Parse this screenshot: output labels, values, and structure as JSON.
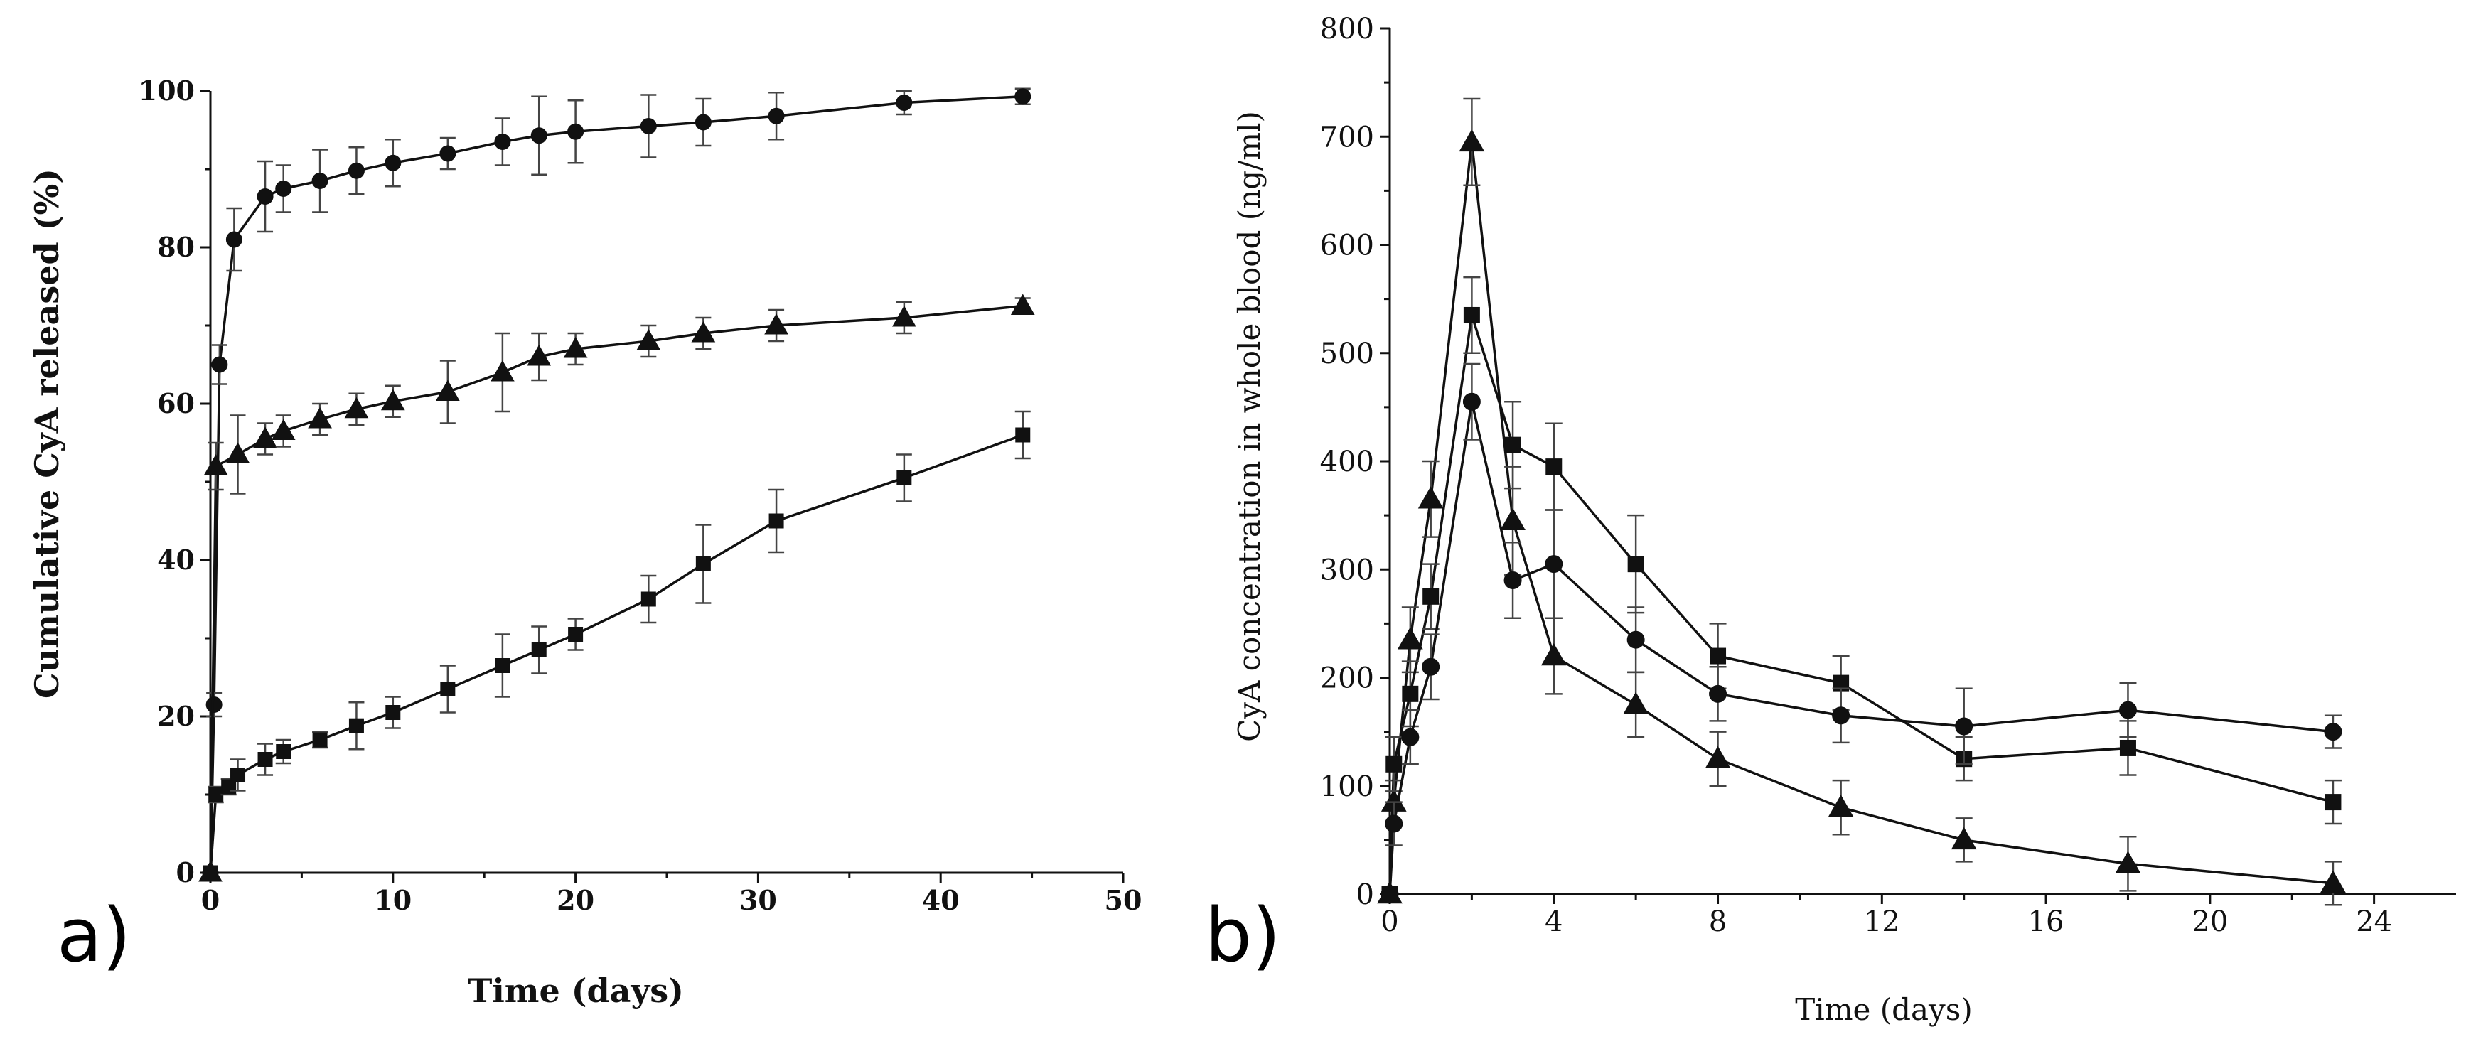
{
  "panels": [
    {
      "label": "a)",
      "xlabel": "Time (days)",
      "ylabel": "Cumulative CyA released (%)",
      "xlim": [
        0,
        50
      ],
      "ylim": [
        0,
        100
      ],
      "xticks": [
        "0",
        "10",
        "20",
        "30",
        "40",
        "50"
      ],
      "yticks": [
        "0",
        "20",
        "40",
        "60",
        "80",
        "100"
      ]
    },
    {
      "label": "b)",
      "xlabel": "Time (days)",
      "ylabel": "CyA concentration in whole blood (ng/ml)",
      "xlim": [
        0,
        26
      ],
      "ylim": [
        0,
        800
      ],
      "xticks": [
        "0",
        "4",
        "8",
        "12",
        "16",
        "20",
        "24"
      ],
      "yticks": [
        "0",
        "100",
        "200",
        "300",
        "400",
        "500",
        "600",
        "700",
        "800"
      ]
    }
  ],
  "chart_data": [
    {
      "type": "line",
      "title": "",
      "xlabel": "Time (days)",
      "ylabel": "Cumulative CyA released (%)",
      "xlim": [
        0,
        50
      ],
      "ylim": [
        0,
        100
      ],
      "grid": false,
      "series": [
        {
          "name": "circle",
          "marker": "circle",
          "x": [
            0,
            0.2,
            0.5,
            1.3,
            3,
            4,
            6,
            8,
            10,
            13,
            16,
            18,
            20,
            24,
            27,
            31,
            38,
            44.5
          ],
          "y": [
            0,
            21.5,
            65,
            81,
            86.5,
            87.5,
            88.5,
            89.8,
            90.8,
            92,
            93.5,
            94.3,
            94.8,
            95.5,
            96,
            96.8,
            98.5,
            99.3
          ],
          "err": [
            0,
            1.5,
            2.5,
            4,
            4.5,
            3,
            4,
            3,
            3,
            2,
            3,
            5,
            4,
            4,
            3,
            3,
            1.5,
            1
          ]
        },
        {
          "name": "triangle",
          "marker": "triangle",
          "x": [
            0,
            0.3,
            1.5,
            3,
            4,
            6,
            8,
            10,
            13,
            16,
            18,
            20,
            24,
            27,
            31,
            38,
            44.5
          ],
          "y": [
            0,
            52,
            53.5,
            55.5,
            56.5,
            58,
            59.3,
            60.3,
            61.5,
            64,
            66,
            67,
            68,
            69,
            70,
            71,
            72.5
          ],
          "err": [
            0,
            3,
            5,
            2,
            2,
            2,
            2,
            2,
            4,
            5,
            3,
            2,
            2,
            2,
            2,
            2,
            1
          ]
        },
        {
          "name": "square",
          "marker": "square",
          "x": [
            0,
            0.3,
            1,
            1.5,
            3,
            4,
            6,
            8,
            10,
            13,
            16,
            18,
            20,
            24,
            27,
            31,
            38,
            44.5
          ],
          "y": [
            0,
            10,
            11,
            12.5,
            14.5,
            15.5,
            17,
            18.8,
            20.5,
            23.5,
            26.5,
            28.5,
            30.5,
            35,
            39.5,
            45,
            50.5,
            56
          ],
          "err": [
            0,
            1,
            1,
            2,
            2,
            1.5,
            1,
            3,
            2,
            3,
            4,
            3,
            2,
            3,
            5,
            4,
            3,
            3
          ]
        }
      ]
    },
    {
      "type": "line",
      "title": "",
      "xlabel": "Time (days)",
      "ylabel": "CyA concentration in whole blood (ng/ml)",
      "xlim": [
        0,
        26
      ],
      "ylim": [
        0,
        800
      ],
      "grid": false,
      "series": [
        {
          "name": "triangle",
          "marker": "triangle",
          "x": [
            0,
            0.1,
            0.5,
            1,
            2,
            3,
            4,
            6,
            8,
            11,
            14,
            18,
            23
          ],
          "y": [
            0,
            85,
            235,
            365,
            695,
            345,
            220,
            175,
            125,
            80,
            50,
            28,
            10
          ],
          "err": [
            0,
            20,
            30,
            35,
            40,
            50,
            35,
            30,
            25,
            25,
            20,
            25,
            20
          ]
        },
        {
          "name": "square",
          "marker": "square",
          "x": [
            0,
            0.1,
            0.5,
            1,
            2,
            3,
            4,
            6,
            8,
            11,
            14,
            18,
            23
          ],
          "y": [
            0,
            120,
            185,
            275,
            535,
            415,
            395,
            305,
            220,
            195,
            125,
            135,
            85
          ],
          "err": [
            0,
            25,
            30,
            30,
            35,
            40,
            40,
            45,
            30,
            25,
            20,
            25,
            20
          ]
        },
        {
          "name": "circle",
          "marker": "circle",
          "x": [
            0,
            0.1,
            0.5,
            1,
            2,
            3,
            4,
            6,
            8,
            11,
            14,
            18,
            23
          ],
          "y": [
            0,
            65,
            145,
            210,
            455,
            290,
            305,
            235,
            185,
            165,
            155,
            170,
            150
          ],
          "err": [
            0,
            20,
            25,
            30,
            35,
            35,
            50,
            30,
            25,
            25,
            35,
            25,
            15
          ]
        }
      ]
    }
  ]
}
